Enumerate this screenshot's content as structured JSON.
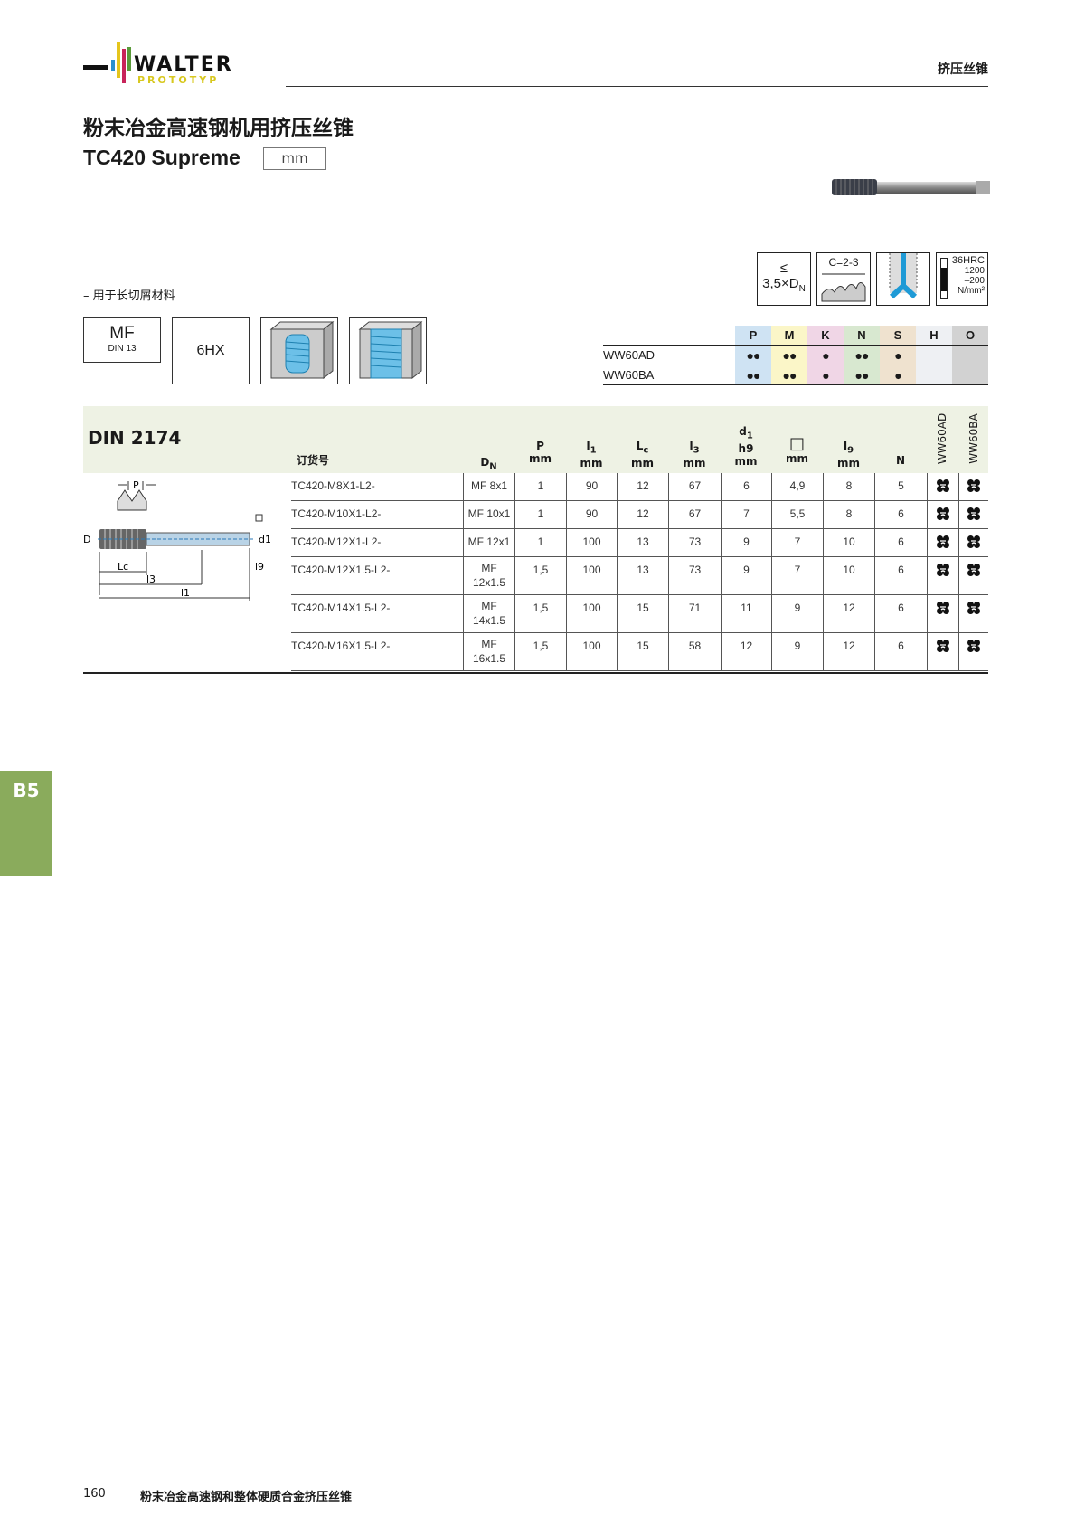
{
  "header": {
    "logo_text": "WALTER",
    "logo_sub": "PROTOTYP",
    "category": "挤压丝锥"
  },
  "title": "粉末冶金高速钢机用挤压丝锥",
  "product": "TC420 Supreme",
  "unit": "mm",
  "icons": {
    "depth_le": "≤",
    "depth": "3,5×D",
    "depth_sub": "N",
    "chamfer": "C=2-3",
    "hardness": "36HRC",
    "strength1": "1200",
    "strength2": "–200",
    "strength_unit": "N/mm²"
  },
  "note": "– 用于长切屑材料",
  "type_boxes": {
    "mf": "MF",
    "mf_std": "DIN 13",
    "tolerance": "6HX"
  },
  "materials": {
    "headers": [
      "P",
      "M",
      "K",
      "N",
      "S",
      "H",
      "O"
    ],
    "colors": [
      "#cfe3f3",
      "#fbf6c8",
      "#f0d6e6",
      "#d8e8d0",
      "#efe2cf",
      "#eef0f3",
      "#d2d2d2"
    ],
    "rows": [
      {
        "label": "WW60AD",
        "vals": [
          "●●",
          "●●",
          "●",
          "●●",
          "●",
          "",
          ""
        ]
      },
      {
        "label": "WW60BA",
        "vals": [
          "●●",
          "●●",
          "●",
          "●●",
          "●",
          "",
          ""
        ]
      }
    ]
  },
  "table": {
    "standard": "DIN 2174",
    "headers": {
      "order": "订货号",
      "dn": "D",
      "dn_sub": "N",
      "p": "P",
      "l1": "l",
      "l1_sub": "1",
      "lc": "L",
      "lc_sub": "c",
      "l3": "l",
      "l3_sub": "3",
      "d1": "d",
      "d1_sub": "1",
      "d1_tol": "h9",
      "sq": "□",
      "l9": "l",
      "l9_sub": "9",
      "n": "N",
      "mm": "mm",
      "c1": "WW60AD",
      "c2": "WW60BA"
    },
    "rows": [
      [
        "TC420-M8X1-L2-",
        "MF 8x1",
        "1",
        "90",
        "12",
        "67",
        "6",
        "4,9",
        "8",
        "5"
      ],
      [
        "TC420-M10X1-L2-",
        "MF 10x1",
        "1",
        "90",
        "12",
        "67",
        "7",
        "5,5",
        "8",
        "6"
      ],
      [
        "TC420-M12X1-L2-",
        "MF 12x1",
        "1",
        "100",
        "13",
        "73",
        "9",
        "7",
        "10",
        "6"
      ],
      [
        "TC420-M12X1.5-L2-",
        "MF 12x1.5",
        "1,5",
        "100",
        "13",
        "73",
        "9",
        "7",
        "10",
        "6"
      ],
      [
        "TC420-M14X1.5-L2-",
        "MF 14x1.5",
        "1,5",
        "100",
        "15",
        "71",
        "11",
        "9",
        "12",
        "6"
      ],
      [
        "TC420-M16X1.5-L2-",
        "MF 16x1.5",
        "1,5",
        "100",
        "15",
        "58",
        "12",
        "9",
        "12",
        "6"
      ]
    ]
  },
  "drawing": {
    "p": "P",
    "dn": "D",
    "dn_sub": "N",
    "d1": "d1",
    "lc": "Lc",
    "l3": "l3",
    "l1": "l1",
    "l9": "l9"
  },
  "side_tab": "B5",
  "footer": {
    "page": "160",
    "text": "粉末冶金高速钢和整体硬质合金挤压丝锥"
  }
}
